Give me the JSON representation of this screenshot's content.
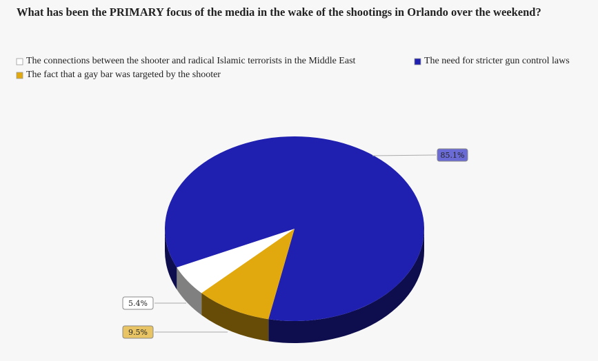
{
  "chart_data": {
    "type": "pie",
    "title": "What has been the PRIMARY focus of the media in the wake of the shootings in Orlando over the weekend?",
    "categories": [
      "The connections between the shooter and radical Islamic terrorists in the Middle East",
      "The need for stricter gun control laws",
      "The fact that a gay bar was targeted by the shooter"
    ],
    "values": [
      5.4,
      85.1,
      9.5
    ],
    "value_labels": [
      "5.4%",
      "85.1%",
      "9.5%"
    ],
    "colors": [
      "#ffffff",
      "#2020b0",
      "#e2a90f"
    ]
  }
}
